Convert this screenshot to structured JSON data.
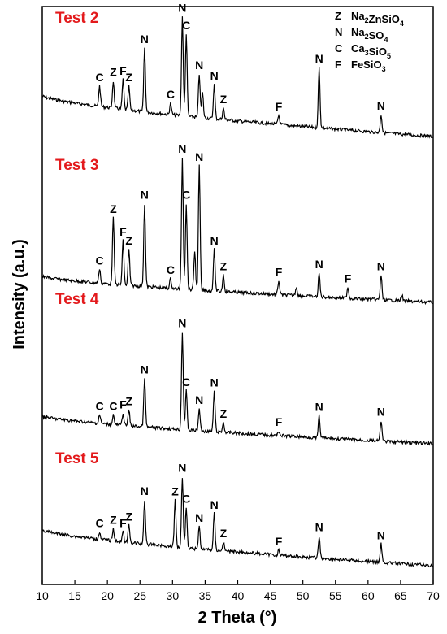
{
  "chart_data": {
    "type": "line",
    "xlabel": "2 Theta (°)",
    "ylabel": "Intensity (a.u.)",
    "xlim": [
      10,
      70
    ],
    "xticks": [
      10,
      15,
      20,
      25,
      30,
      35,
      40,
      45,
      50,
      55,
      60,
      65,
      70
    ],
    "grid": false,
    "legend_placement": "top-right",
    "colors": {
      "test_label": "#e31a1c",
      "line": "#000000"
    },
    "legend": [
      {
        "symbol": "Z",
        "formula": [
          [
            "Na",
            "2"
          ],
          [
            "ZnSiO",
            "4"
          ]
        ]
      },
      {
        "symbol": "N",
        "formula": [
          [
            "Na",
            "2"
          ],
          [
            "SO",
            "4"
          ]
        ]
      },
      {
        "symbol": "C",
        "formula": [
          [
            "Ca",
            "3"
          ],
          [
            "SiO",
            "5"
          ]
        ]
      },
      {
        "symbol": "F",
        "formula": [
          [
            "FeSiO",
            "3"
          ]
        ]
      }
    ],
    "series": [
      {
        "name": "Test 2",
        "peaks": [
          {
            "x": 18.8,
            "label": "C",
            "h": 0.18
          },
          {
            "x": 20.9,
            "label": "Z",
            "h": 0.24
          },
          {
            "x": 22.4,
            "label": "F",
            "h": 0.26
          },
          {
            "x": 23.3,
            "label": "Z",
            "h": 0.21
          },
          {
            "x": 25.7,
            "label": "N",
            "h": 0.56
          },
          {
            "x": 29.7,
            "label": "C",
            "h": 0.1
          },
          {
            "x": 31.5,
            "label": "N",
            "h": 0.87
          },
          {
            "x": 32.1,
            "label": "C",
            "h": 0.72
          },
          {
            "x": 34.1,
            "label": "N",
            "h": 0.38
          },
          {
            "x": 34.6,
            "label": "",
            "h": 0.22
          },
          {
            "x": 36.4,
            "label": "N",
            "h": 0.3
          },
          {
            "x": 37.8,
            "label": "Z",
            "h": 0.1
          },
          {
            "x": 46.3,
            "label": "F",
            "h": 0.08
          },
          {
            "x": 52.5,
            "label": "N",
            "h": 0.53
          },
          {
            "x": 62.0,
            "label": "N",
            "h": 0.16
          }
        ]
      },
      {
        "name": "Test 3",
        "peaks": [
          {
            "x": 18.8,
            "label": "C",
            "h": 0.1
          },
          {
            "x": 20.9,
            "label": "Z",
            "h": 0.48
          },
          {
            "x": 22.4,
            "label": "F",
            "h": 0.32
          },
          {
            "x": 23.3,
            "label": "Z",
            "h": 0.26
          },
          {
            "x": 25.7,
            "label": "N",
            "h": 0.6
          },
          {
            "x": 29.7,
            "label": "C",
            "h": 0.07
          },
          {
            "x": 31.5,
            "label": "N",
            "h": 0.95
          },
          {
            "x": 32.1,
            "label": "C",
            "h": 0.62
          },
          {
            "x": 33.4,
            "label": "",
            "h": 0.28
          },
          {
            "x": 34.1,
            "label": "N",
            "h": 0.9
          },
          {
            "x": 36.4,
            "label": "N",
            "h": 0.3
          },
          {
            "x": 37.8,
            "label": "Z",
            "h": 0.12
          },
          {
            "x": 46.3,
            "label": "F",
            "h": 0.1
          },
          {
            "x": 49.0,
            "label": "",
            "h": 0.06
          },
          {
            "x": 52.5,
            "label": "N",
            "h": 0.17
          },
          {
            "x": 56.9,
            "label": "F",
            "h": 0.08
          },
          {
            "x": 62.0,
            "label": "N",
            "h": 0.18
          },
          {
            "x": 65.2,
            "label": "",
            "h": 0.04
          }
        ]
      },
      {
        "name": "Test 4",
        "peaks": [
          {
            "x": 18.8,
            "label": "C",
            "h": 0.07
          },
          {
            "x": 20.9,
            "label": "C",
            "h": 0.08
          },
          {
            "x": 22.4,
            "label": "F",
            "h": 0.1
          },
          {
            "x": 23.3,
            "label": "Z",
            "h": 0.13
          },
          {
            "x": 25.7,
            "label": "N",
            "h": 0.4
          },
          {
            "x": 31.5,
            "label": "N",
            "h": 0.8
          },
          {
            "x": 32.1,
            "label": "C",
            "h": 0.32
          },
          {
            "x": 34.1,
            "label": "N",
            "h": 0.18
          },
          {
            "x": 36.4,
            "label": "N",
            "h": 0.33
          },
          {
            "x": 37.8,
            "label": "Z",
            "h": 0.08
          },
          {
            "x": 46.3,
            "label": "F",
            "h": 0.04
          },
          {
            "x": 52.5,
            "label": "N",
            "h": 0.18
          },
          {
            "x": 62.0,
            "label": "N",
            "h": 0.17
          }
        ]
      },
      {
        "name": "Test 5",
        "peaks": [
          {
            "x": 18.8,
            "label": "C",
            "h": 0.06
          },
          {
            "x": 20.9,
            "label": "Z",
            "h": 0.1
          },
          {
            "x": 22.4,
            "label": "F",
            "h": 0.08
          },
          {
            "x": 23.3,
            "label": "Z",
            "h": 0.14
          },
          {
            "x": 25.7,
            "label": "N",
            "h": 0.36
          },
          {
            "x": 30.4,
            "label": "Z",
            "h": 0.38
          },
          {
            "x": 31.5,
            "label": "N",
            "h": 0.58
          },
          {
            "x": 32.1,
            "label": "C",
            "h": 0.33
          },
          {
            "x": 34.1,
            "label": "N",
            "h": 0.18
          },
          {
            "x": 36.4,
            "label": "N",
            "h": 0.3
          },
          {
            "x": 37.8,
            "label": "Z",
            "h": 0.07
          },
          {
            "x": 46.3,
            "label": "F",
            "h": 0.04
          },
          {
            "x": 52.5,
            "label": "N",
            "h": 0.18
          },
          {
            "x": 62.0,
            "label": "N",
            "h": 0.15
          }
        ]
      }
    ]
  }
}
